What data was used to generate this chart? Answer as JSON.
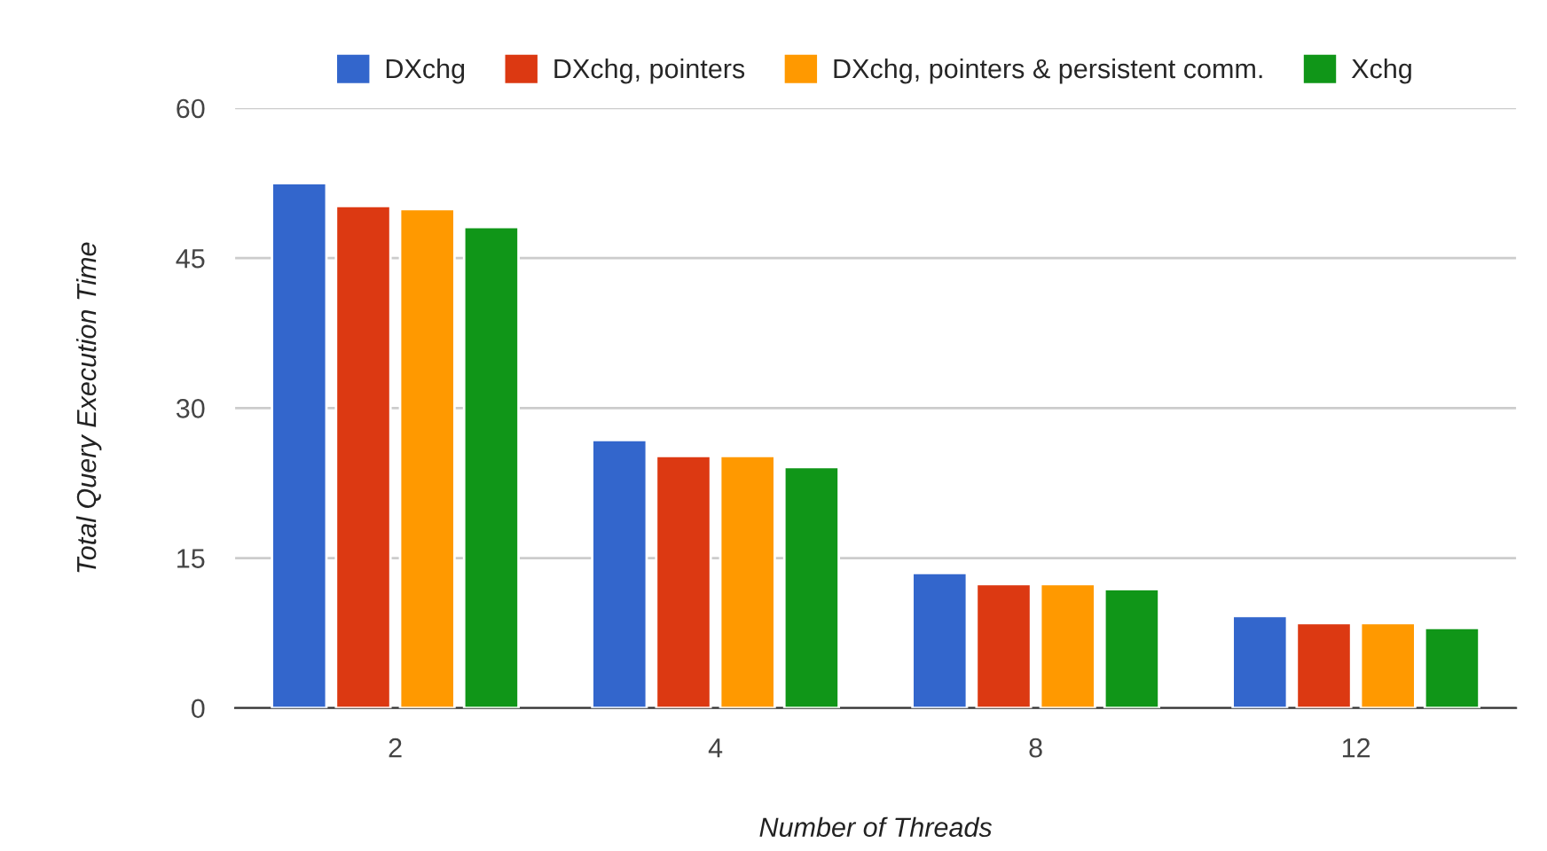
{
  "chart_data": {
    "type": "bar",
    "xlabel": "Number of Threads",
    "ylabel": "Total Query Execution Time",
    "categories": [
      "2",
      "4",
      "8",
      "12"
    ],
    "series": [
      {
        "name": "DXchg",
        "color": "#3366cc",
        "values": [
          52.5,
          26.8,
          13.5,
          9.2
        ]
      },
      {
        "name": "DXchg, pointers",
        "color": "#dc3912",
        "values": [
          50.2,
          25.2,
          12.4,
          8.5
        ]
      },
      {
        "name": "DXchg, pointers & persistent comm.",
        "color": "#ff9900",
        "values": [
          49.9,
          25.2,
          12.4,
          8.5
        ]
      },
      {
        "name": "Xchg",
        "color": "#109618",
        "values": [
          48.1,
          24.1,
          11.9,
          8.0
        ]
      }
    ],
    "ylim": [
      0,
      60
    ],
    "yticks": [
      0,
      15,
      30,
      45,
      60
    ],
    "grid": "y",
    "legend": "top"
  }
}
